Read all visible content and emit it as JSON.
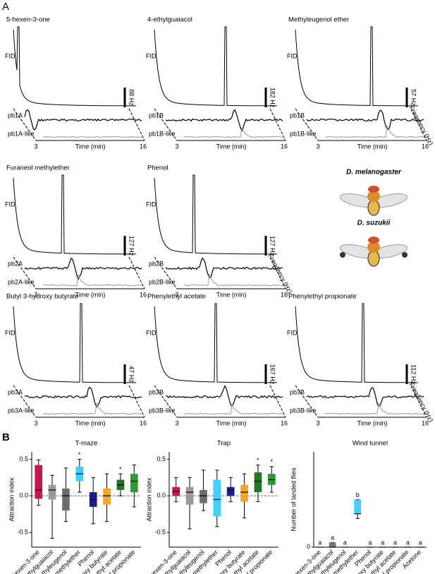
{
  "panel_a": {
    "label": "A",
    "subpanels": [
      {
        "title": "5-hexen-3-one",
        "fid": "FID",
        "scale": "88 Hz",
        "neuron": "pb1A",
        "neuron_like": "pb1A-like",
        "x_start": 3,
        "x_label": "Time (min)",
        "x_end": 16
      },
      {
        "title": "4-ethylguaiacol",
        "fid": "FID",
        "scale": "182 Hz",
        "neuron": "pb1B",
        "neuron_like": "pb1B-like",
        "x_start": 3,
        "x_label": "Time (min)",
        "x_end": 16
      },
      {
        "title": "Methyleugenol ether",
        "fid": "FID",
        "scale": "57 Hz",
        "neuron": "pb1B",
        "neuron_like": "pb1B-like",
        "x_start": 3,
        "x_label": "Time (min)",
        "x_end": 16,
        "frequency_label": "Frequency (Hz)"
      },
      {
        "title": "Furaneol methylether",
        "fid": "FID",
        "scale": "127 Hz",
        "neuron": "pb2A",
        "neuron_like": "pb2A-like",
        "x_start": 3,
        "x_label": "Time (min)",
        "x_end": 16
      },
      {
        "title": "Phenol",
        "fid": "FID",
        "scale": "127 Hz",
        "neuron": "pb2B",
        "neuron_like": "pb2B-like",
        "x_start": 3,
        "x_label": "Time (min)",
        "x_end": 16,
        "frequency_label": "Frequency (Hz)"
      },
      {
        "title": "Butyl 3-hydroxy butyrate",
        "fid": "FID",
        "scale": "47 Hz",
        "neuron": "pb3A",
        "neuron_like": "pb3A-like",
        "x_start": 3,
        "x_label": "Time (min)",
        "x_end": 16
      },
      {
        "title": "Phenylethyl acetate",
        "fid": "FID",
        "scale": "167 Hz",
        "neuron": "pb3B",
        "neuron_like": "pb3B-like",
        "x_start": 3,
        "x_label": "Time (min)",
        "x_end": 16
      },
      {
        "title": "Phenylethyl propionate",
        "fid": "FID",
        "scale": "112 Hz",
        "neuron": "pb3B",
        "neuron_like": "pb3B-like",
        "x_start": 3,
        "x_label": "Time (min)",
        "x_end": 16,
        "frequency_label": "Frequency (Hz)"
      }
    ],
    "flies": [
      "D. melanogaster",
      "D. suzukii"
    ]
  },
  "panel_b_label": "B",
  "chart_data": [
    {
      "type": "box",
      "title": "T-maze",
      "y_label": "Attraction index",
      "categories": [
        "5-hexen-3-one",
        "4-ethylguaiacol",
        "Methyleugenol",
        "Furaneol methylether",
        "Phenol",
        "Butyl 3-hydroxy butyrate",
        "Phenethyl acetate",
        "Phenethyl propionate"
      ],
      "stats": [
        [
          -0.13,
          -0.04,
          0.08,
          0.42,
          0.49
        ],
        [
          -0.58,
          -0.05,
          0.08,
          0.15,
          0.28
        ],
        [
          -0.35,
          -0.2,
          0.0,
          0.1,
          0.38
        ],
        [
          0.05,
          0.2,
          0.3,
          0.4,
          0.5
        ],
        [
          -0.38,
          -0.15,
          -0.05,
          0.05,
          0.25
        ],
        [
          -0.35,
          -0.12,
          0.0,
          0.1,
          0.3
        ],
        [
          0.0,
          0.08,
          0.15,
          0.22,
          0.3
        ],
        [
          -0.15,
          0.05,
          0.2,
          0.3,
          0.42
        ]
      ],
      "colors": [
        "#c8174f",
        "#9a9a9a",
        "#6d6d6d",
        "#3fd0ff",
        "#1c1c8a",
        "#f5a623",
        "#1f7a1f",
        "#2e9a2e"
      ],
      "annotations": [
        null,
        null,
        null,
        "*",
        null,
        null,
        "*",
        null
      ],
      "reference_line": 0,
      "ylim": [
        -0.7,
        0.6
      ],
      "yticks": [
        {
          "value": -0.5,
          "label": "-0.5"
        },
        {
          "value": 0,
          "label": "0.0"
        },
        {
          "value": 0.5,
          "label": "0.5"
        }
      ]
    },
    {
      "type": "box",
      "title": "Trap",
      "y_label": "Attraction index",
      "categories": [
        "5-hexen-3-one",
        "4-ethylguaiacol",
        "Methyleugenol",
        "Furaneol methylether",
        "Phenol",
        "Butyl 3-hydroxy butyrate",
        "Phenethyl acetate",
        "Phenethyl propionate"
      ],
      "stats": [
        [
          -0.08,
          0.0,
          0.06,
          0.12,
          0.25
        ],
        [
          -0.45,
          -0.12,
          0.05,
          0.12,
          0.25
        ],
        [
          -0.2,
          -0.1,
          0.0,
          0.08,
          0.35
        ],
        [
          -0.42,
          -0.28,
          -0.05,
          0.22,
          0.35
        ],
        [
          -0.08,
          0.0,
          0.08,
          0.12,
          0.25
        ],
        [
          -0.3,
          -0.08,
          0.05,
          0.15,
          0.3
        ],
        [
          -0.08,
          0.05,
          0.2,
          0.32,
          0.42
        ],
        [
          0.05,
          0.15,
          0.22,
          0.3,
          0.4
        ]
      ],
      "colors": [
        "#c8174f",
        "#9a9a9a",
        "#6d6d6d",
        "#3fd0ff",
        "#1c1c8a",
        "#f5a623",
        "#1f7a1f",
        "#2e9a2e"
      ],
      "annotations": [
        null,
        null,
        null,
        null,
        null,
        null,
        "*",
        "*"
      ],
      "reference_line": 0,
      "ylim": [
        -0.7,
        0.6
      ],
      "yticks": [
        {
          "value": -0.5,
          "label": "-0.5"
        },
        {
          "value": 0,
          "label": "0.0"
        },
        {
          "value": 0.5,
          "label": "0.5"
        }
      ]
    },
    {
      "type": "box",
      "title": "Wind tunnel",
      "y_label": "Number of landed flies",
      "categories": [
        "5-hexen-3-one",
        "4-ethylguaiacol",
        "Methyleugenol",
        "Furaneol methylether",
        "Phenol",
        "Butyl 3-hydroxy butyrate",
        "Phenethyl acetate",
        "Phenethyl propionate",
        "Acetone"
      ],
      "stats": [
        [
          0,
          0,
          0,
          0,
          0
        ],
        [
          0,
          0,
          0,
          0.5,
          0.5
        ],
        [
          0,
          0,
          0,
          0,
          0
        ],
        [
          3.0,
          3.5,
          3.5,
          5.0,
          5.0
        ],
        [
          0,
          0,
          0,
          0,
          0
        ],
        [
          0,
          0,
          0,
          0,
          0
        ],
        [
          0,
          0,
          0,
          0,
          0
        ],
        [
          0,
          0,
          0,
          0,
          0
        ],
        [
          0,
          0,
          0,
          0,
          0
        ]
      ],
      "colors": [
        "#777777",
        "#777777",
        "#777777",
        "#3fd0ff",
        "#777777",
        "#777777",
        "#777777",
        "#777777",
        "#777777"
      ],
      "annotations": [
        "a",
        "a",
        "a",
        "b",
        "a",
        "a",
        "a",
        "a",
        "a"
      ],
      "ylim": [
        0,
        10
      ],
      "yticks": [
        0
      ]
    }
  ]
}
